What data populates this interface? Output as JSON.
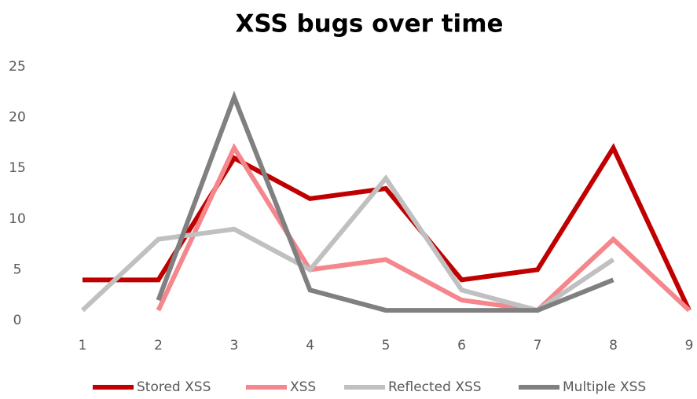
{
  "chart_data": {
    "type": "line",
    "title": "XSS bugs over time",
    "x": [
      1,
      2,
      3,
      4,
      5,
      6,
      7,
      8,
      9
    ],
    "xlim": [
      1,
      9
    ],
    "xticks": [
      1,
      2,
      3,
      4,
      5,
      6,
      7,
      8,
      9
    ],
    "ylim": [
      0,
      25
    ],
    "yticks": [
      0,
      5,
      10,
      15,
      20,
      25
    ],
    "grid": false,
    "legend": "bottom",
    "series": [
      {
        "name": "Stored XSS",
        "color": "#c00000",
        "values": [
          4,
          4,
          16,
          12,
          13,
          4,
          5,
          17,
          1
        ]
      },
      {
        "name": "XSS",
        "color": "#f4868c",
        "values": [
          null,
          1,
          17,
          5,
          6,
          2,
          1,
          8,
          1
        ]
      },
      {
        "name": "Reflected XSS",
        "color": "#c0c0c0",
        "values": [
          1,
          8,
          9,
          5,
          14,
          3,
          1,
          6,
          null
        ]
      },
      {
        "name": "Multiple XSS",
        "color": "#808080",
        "values": [
          null,
          2,
          22,
          3,
          1,
          1,
          1,
          4,
          null
        ]
      }
    ]
  }
}
